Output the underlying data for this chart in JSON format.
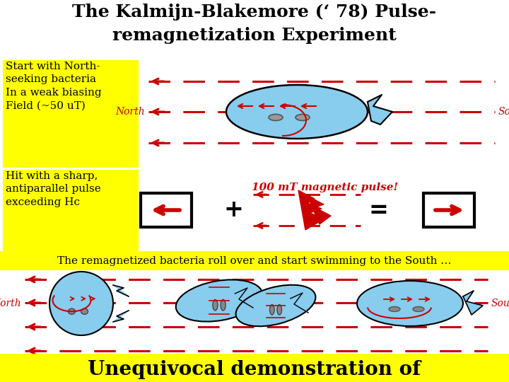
{
  "title_line1": "The Kalmijn-Blakemore (‘ 78) Pulse-",
  "title_line2": "remagnetization Experiment",
  "label_north": "North",
  "label_south": "South",
  "label_start": "Start with North-\nseeking bacteria\nIn a weak biasing\nField (~50 uT)",
  "label_hit": "Hit with a sharp,\nantiparallel pulse\nexceeding Hc",
  "label_pulse": "100 mT magnetic pulse!",
  "label_remag": "The remagnetized bacteria roll over and start swimming to the South …",
  "label_unequivocal": "Unequivocal demonstration of",
  "bg_color": "#ffffff",
  "yellow_bg": "#ffff00",
  "red_color": "#cc0000",
  "blue_color": "#88ccee",
  "black_color": "#000000",
  "title_fs": 18,
  "body_fs": 11,
  "north_south_fs": 10,
  "pulse_fs": 11,
  "banner_fs": 11,
  "unequiv_fs": 20
}
